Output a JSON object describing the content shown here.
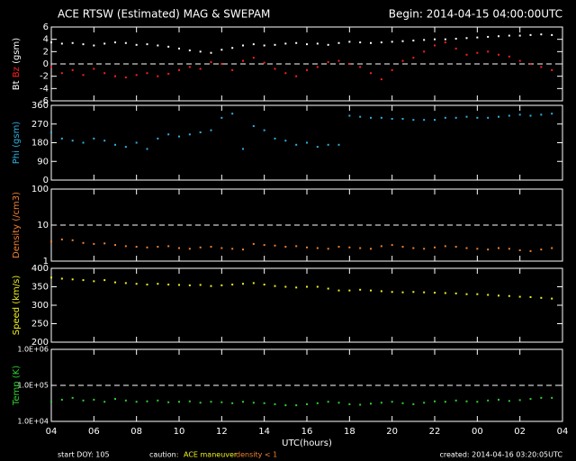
{
  "header": {
    "title": "ACE RTSW (Estimated) MAG & SWEPAM",
    "begin": "Begin: 2014-04-15 04:00:00UTC"
  },
  "footer": {
    "doy": "start DOY: 105",
    "caution": "caution:",
    "maneuver": "ACE maneuver",
    "density": "density < 1",
    "created": "created: 2014-04-16 03:20:05UTC"
  },
  "chart_data": [
    {
      "type": "scatter",
      "ylabel": "(gsm)",
      "ylim": [
        -6,
        6
      ],
      "yticks": [
        6,
        4,
        2,
        0,
        -2,
        -4,
        -6
      ],
      "refline": [
        0
      ],
      "xlim": [
        0,
        24
      ],
      "xticks": [
        0,
        2,
        4,
        6,
        8,
        10,
        12,
        14,
        16,
        18,
        20,
        22,
        24
      ],
      "x": [
        0,
        0.5,
        1,
        1.5,
        2,
        2.5,
        3,
        3.5,
        4,
        4.5,
        5,
        5.5,
        6,
        6.5,
        7,
        7.5,
        8,
        8.5,
        9,
        9.5,
        10,
        10.5,
        11,
        11.5,
        12,
        12.5,
        13,
        13.5,
        14,
        14.5,
        15,
        15.5,
        16,
        16.5,
        17,
        17.5,
        18,
        18.5,
        19,
        19.5,
        20,
        20.5,
        21,
        21.5,
        22,
        22.5,
        23,
        23.5
      ],
      "series": [
        {
          "name": "Bt",
          "color": "#ffffff",
          "values": [
            3.5,
            3.3,
            3.4,
            3.2,
            3.0,
            3.3,
            3.5,
            3.4,
            3.1,
            3.2,
            3.0,
            2.8,
            2.5,
            2.2,
            2.0,
            1.8,
            2.3,
            2.6,
            3.0,
            3.2,
            3.0,
            3.1,
            3.3,
            3.4,
            3.2,
            3.3,
            3.1,
            3.4,
            3.6,
            3.5,
            3.4,
            3.5,
            3.6,
            3.7,
            3.8,
            3.9,
            4.0,
            4.0,
            4.1,
            4.2,
            4.3,
            4.4,
            4.5,
            4.6,
            4.6,
            4.7,
            4.8,
            4.7
          ]
        },
        {
          "name": "Bz",
          "color": "#ff2020",
          "values": [
            -0.5,
            -1.5,
            -1.0,
            -1.8,
            -0.8,
            -1.5,
            -2.0,
            -2.2,
            -1.8,
            -1.5,
            -2.0,
            -1.6,
            -1.0,
            -0.5,
            -0.8,
            0.3,
            0.0,
            -1.0,
            0.5,
            1.0,
            0.2,
            -0.8,
            -1.5,
            -2.0,
            -1.0,
            -0.5,
            0.3,
            0.5,
            0.0,
            -0.5,
            -1.5,
            -2.5,
            -1.0,
            0.5,
            1.0,
            2.0,
            3.0,
            3.5,
            2.5,
            1.5,
            1.8,
            2.0,
            1.5,
            1.2,
            0.5,
            0.0,
            -0.5,
            -1.0
          ]
        }
      ]
    },
    {
      "type": "scatter",
      "ylabel": "Phi (gsm)",
      "ylim": [
        0,
        360
      ],
      "yticks": [
        360,
        270,
        180,
        90,
        0
      ],
      "xlim": [
        0,
        24
      ],
      "xticks": [
        0,
        2,
        4,
        6,
        8,
        10,
        12,
        14,
        16,
        18,
        20,
        22,
        24
      ],
      "x": [
        0,
        0.5,
        1,
        1.5,
        2,
        2.5,
        3,
        3.5,
        4,
        4.5,
        5,
        5.5,
        6,
        6.5,
        7,
        7.5,
        8,
        8.5,
        9,
        9.5,
        10,
        10.5,
        11,
        11.5,
        12,
        12.5,
        13,
        13.5,
        14,
        14.5,
        15,
        15.5,
        16,
        16.5,
        17,
        17.5,
        18,
        18.5,
        19,
        19.5,
        20,
        20.5,
        21,
        21.5,
        22,
        22.5,
        23,
        23.5
      ],
      "series": [
        {
          "name": "Phi",
          "color": "#30b0e0",
          "values": [
            230,
            200,
            190,
            180,
            200,
            190,
            170,
            160,
            180,
            150,
            200,
            220,
            210,
            220,
            230,
            240,
            300,
            320,
            150,
            260,
            240,
            200,
            190,
            170,
            180,
            160,
            170,
            170,
            310,
            305,
            300,
            300,
            295,
            295,
            290,
            290,
            290,
            300,
            300,
            305,
            300,
            300,
            305,
            310,
            315,
            310,
            315,
            320
          ]
        }
      ]
    },
    {
      "type": "scatter",
      "ylabel": "Density (/cm3)",
      "log": true,
      "ylim": [
        1,
        100
      ],
      "yticks": [
        100,
        10,
        1
      ],
      "refline": [
        10
      ],
      "xlim": [
        0,
        24
      ],
      "xticks": [
        0,
        2,
        4,
        6,
        8,
        10,
        12,
        14,
        16,
        18,
        20,
        22,
        24
      ],
      "x": [
        0,
        0.5,
        1,
        1.5,
        2,
        2.5,
        3,
        3.5,
        4,
        4.5,
        5,
        5.5,
        6,
        6.5,
        7,
        7.5,
        8,
        8.5,
        9,
        9.5,
        10,
        10.5,
        11,
        11.5,
        12,
        12.5,
        13,
        13.5,
        14,
        14.5,
        15,
        15.5,
        16,
        16.5,
        17,
        17.5,
        18,
        18.5,
        19,
        19.5,
        20,
        20.5,
        21,
        21.5,
        22,
        22.5,
        23,
        23.5
      ],
      "series": [
        {
          "name": "Density",
          "color": "#f08030",
          "values": [
            3.5,
            4,
            3.8,
            3.2,
            3,
            3.1,
            2.8,
            2.6,
            2.5,
            2.4,
            2.5,
            2.6,
            2.3,
            2.2,
            2.4,
            2.5,
            2.3,
            2.2,
            2.1,
            3,
            2.8,
            2.7,
            2.5,
            2.6,
            2.4,
            2.3,
            2.2,
            2.5,
            2.4,
            2.3,
            2.2,
            2.6,
            2.8,
            2.5,
            2.3,
            2.2,
            2.4,
            2.6,
            2.5,
            2.3,
            2.2,
            2.1,
            2.3,
            2.2,
            2.0,
            1.9,
            2.1,
            2.3
          ]
        }
      ]
    },
    {
      "type": "scatter",
      "ylabel": "Speed (km/s)",
      "ylim": [
        200,
        400
      ],
      "yticks": [
        400,
        350,
        300,
        250,
        200
      ],
      "xlim": [
        0,
        24
      ],
      "xticks": [
        0,
        2,
        4,
        6,
        8,
        10,
        12,
        14,
        16,
        18,
        20,
        22,
        24
      ],
      "x": [
        0,
        0.5,
        1,
        1.5,
        2,
        2.5,
        3,
        3.5,
        4,
        4.5,
        5,
        5.5,
        6,
        6.5,
        7,
        7.5,
        8,
        8.5,
        9,
        9.5,
        10,
        10.5,
        11,
        11.5,
        12,
        12.5,
        13,
        13.5,
        14,
        14.5,
        15,
        15.5,
        16,
        16.5,
        17,
        17.5,
        18,
        18.5,
        19,
        19.5,
        20,
        20.5,
        21,
        21.5,
        22,
        22.5,
        23,
        23.5
      ],
      "series": [
        {
          "name": "Speed",
          "color": "#f0f020",
          "values": [
            375,
            372,
            370,
            368,
            365,
            368,
            362,
            360,
            358,
            356,
            358,
            356,
            355,
            354,
            355,
            352,
            354,
            356,
            358,
            360,
            356,
            352,
            350,
            348,
            350,
            350,
            345,
            340,
            340,
            342,
            340,
            338,
            336,
            335,
            336,
            335,
            334,
            333,
            332,
            330,
            330,
            328,
            326,
            325,
            323,
            322,
            320,
            318
          ]
        }
      ]
    },
    {
      "type": "scatter",
      "ylabel": "Temp (K)",
      "log": true,
      "ylim": [
        10000,
        1000000
      ],
      "yticks": [
        {
          "value": 1000000,
          "label": "1.0E+06"
        },
        {
          "value": 100000,
          "label": "1.0E+05"
        },
        {
          "value": 10000,
          "label": "1.0E+04"
        }
      ],
      "refline": [
        100000
      ],
      "xlabel": "UTC(hours)",
      "xlim": [
        0,
        24
      ],
      "xticks": [
        {
          "value": 0,
          "label": "04"
        },
        {
          "value": 2,
          "label": "06"
        },
        {
          "value": 4,
          "label": "08"
        },
        {
          "value": 6,
          "label": "10"
        },
        {
          "value": 8,
          "label": "12"
        },
        {
          "value": 10,
          "label": "14"
        },
        {
          "value": 12,
          "label": "16"
        },
        {
          "value": 14,
          "label": "18"
        },
        {
          "value": 16,
          "label": "20"
        },
        {
          "value": 18,
          "label": "22"
        },
        {
          "value": 20,
          "label": "00"
        },
        {
          "value": 22,
          "label": "02"
        },
        {
          "value": 24,
          "label": "04"
        }
      ],
      "x": [
        0,
        0.5,
        1,
        1.5,
        2,
        2.5,
        3,
        3.5,
        4,
        4.5,
        5,
        5.5,
        6,
        6.5,
        7,
        7.5,
        8,
        8.5,
        9,
        9.5,
        10,
        10.5,
        11,
        11.5,
        12,
        12.5,
        13,
        13.5,
        14,
        14.5,
        15,
        15.5,
        16,
        16.5,
        17,
        17.5,
        18,
        18.5,
        19,
        19.5,
        20,
        20.5,
        21,
        21.5,
        22,
        22.5,
        23,
        23.5
      ],
      "series": [
        {
          "name": "Temp",
          "color": "#30d030",
          "values": [
            35000,
            40000,
            45000,
            38000,
            40000,
            35000,
            42000,
            38000,
            35000,
            36000,
            38000,
            34000,
            35000,
            36000,
            33000,
            35000,
            34000,
            32000,
            35000,
            33000,
            32000,
            30000,
            28000,
            28000,
            30000,
            32000,
            35000,
            33000,
            30000,
            29000,
            31000,
            33000,
            35000,
            32000,
            30000,
            33000,
            36000,
            35000,
            38000,
            36000,
            35000,
            38000,
            40000,
            37000,
            39000,
            42000,
            45000,
            45000
          ]
        }
      ]
    }
  ]
}
